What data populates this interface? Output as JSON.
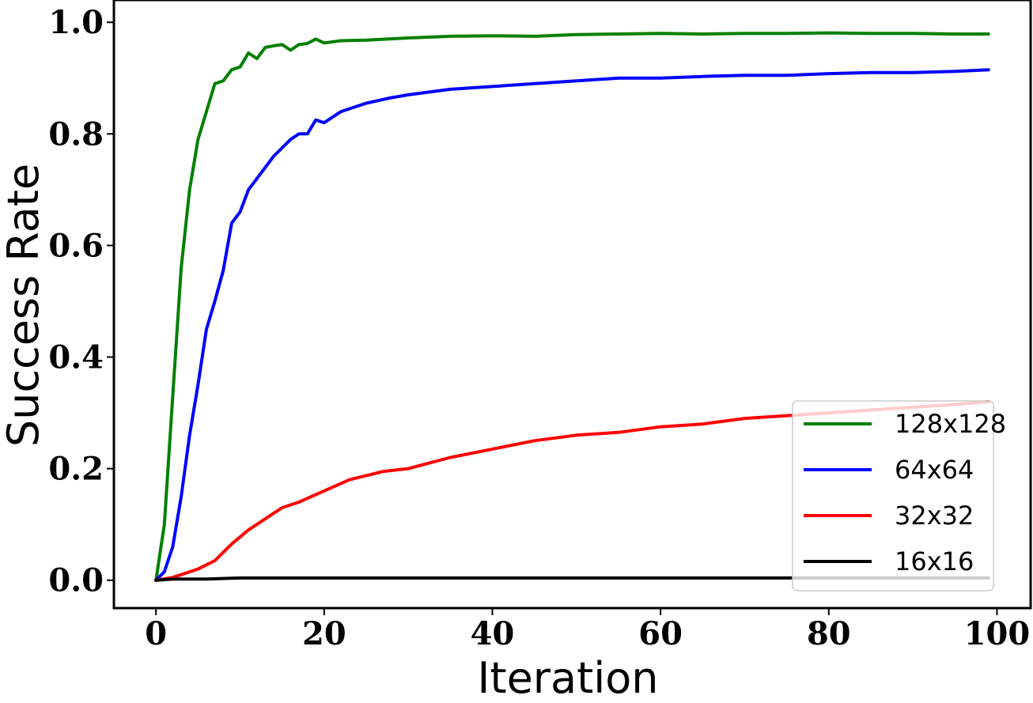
{
  "chart_data": {
    "type": "line",
    "xlabel": "Iteration",
    "ylabel": "Success Rate",
    "xlim": [
      -5,
      104
    ],
    "ylim": [
      -0.05,
      1.04
    ],
    "xticks": [
      0,
      20,
      40,
      60,
      80,
      100
    ],
    "xtick_labels": [
      "0",
      "20",
      "40",
      "60",
      "80",
      "100"
    ],
    "yticks": [
      0.0,
      0.2,
      0.4,
      0.6,
      0.8,
      1.0
    ],
    "ytick_labels": [
      "0.0",
      "0.2",
      "0.4",
      "0.6",
      "0.8",
      "1.0"
    ],
    "grid": false,
    "legend_position": "lower-right",
    "series": [
      {
        "name": "128x128",
        "color": "#008000",
        "x": [
          0,
          1,
          2,
          3,
          4,
          5,
          6,
          7,
          8,
          9,
          10,
          11,
          12,
          13,
          14,
          15,
          16,
          17,
          18,
          19,
          20,
          22,
          25,
          30,
          35,
          40,
          45,
          50,
          55,
          60,
          65,
          70,
          75,
          80,
          85,
          90,
          95,
          99
        ],
        "y": [
          0.0,
          0.1,
          0.33,
          0.56,
          0.7,
          0.79,
          0.84,
          0.89,
          0.895,
          0.915,
          0.92,
          0.945,
          0.935,
          0.955,
          0.958,
          0.96,
          0.95,
          0.96,
          0.962,
          0.97,
          0.963,
          0.967,
          0.968,
          0.972,
          0.975,
          0.976,
          0.975,
          0.978,
          0.979,
          0.98,
          0.979,
          0.98,
          0.98,
          0.981,
          0.98,
          0.98,
          0.979,
          0.979
        ]
      },
      {
        "name": "64x64",
        "color": "#0000ff",
        "x": [
          0,
          1,
          2,
          3,
          4,
          5,
          6,
          7,
          8,
          9,
          10,
          11,
          12,
          13,
          14,
          15,
          16,
          17,
          18,
          19,
          20,
          22,
          25,
          28,
          30,
          35,
          40,
          45,
          50,
          55,
          60,
          65,
          70,
          75,
          80,
          85,
          90,
          95,
          99
        ],
        "y": [
          0.0,
          0.015,
          0.06,
          0.15,
          0.26,
          0.35,
          0.45,
          0.5,
          0.555,
          0.64,
          0.66,
          0.7,
          0.72,
          0.74,
          0.76,
          0.775,
          0.79,
          0.8,
          0.8,
          0.825,
          0.82,
          0.84,
          0.855,
          0.865,
          0.87,
          0.88,
          0.885,
          0.89,
          0.895,
          0.9,
          0.9,
          0.903,
          0.905,
          0.905,
          0.908,
          0.91,
          0.91,
          0.912,
          0.915
        ]
      },
      {
        "name": "32x32",
        "color": "#ff0000",
        "x": [
          0,
          2,
          3,
          5,
          7,
          9,
          11,
          13,
          15,
          17,
          20,
          23,
          27,
          30,
          35,
          40,
          45,
          50,
          55,
          60,
          65,
          70,
          75,
          80,
          85,
          90,
          95,
          99
        ],
        "y": [
          0.0,
          0.005,
          0.01,
          0.02,
          0.035,
          0.065,
          0.09,
          0.11,
          0.13,
          0.14,
          0.16,
          0.18,
          0.195,
          0.2,
          0.22,
          0.235,
          0.25,
          0.26,
          0.265,
          0.275,
          0.28,
          0.29,
          0.295,
          0.3,
          0.305,
          0.31,
          0.315,
          0.32
        ]
      },
      {
        "name": "16x16",
        "color": "#000000",
        "x": [
          0,
          2,
          6,
          10,
          20,
          40,
          60,
          80,
          99
        ],
        "y": [
          0.0,
          0.002,
          0.002,
          0.004,
          0.004,
          0.004,
          0.004,
          0.004,
          0.004
        ]
      }
    ]
  }
}
